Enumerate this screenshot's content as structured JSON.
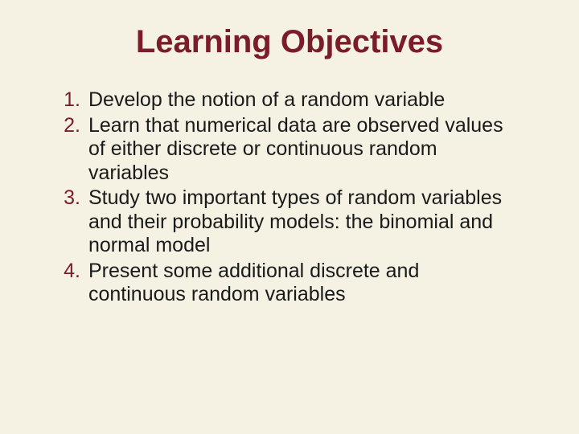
{
  "slide": {
    "title": "Learning Objectives",
    "items": [
      "Develop the notion of a random variable",
      "Learn that numerical data are observed values of either discrete or continuous random variables",
      "Study two important types of random variables and their probability models: the binomial and normal model",
      "Present some additional discrete and continuous random variables"
    ],
    "colors": {
      "background": "#f5f2e4",
      "title": "#7a1c2a",
      "number": "#7a1c2a",
      "body": "#1a1a1a"
    },
    "typography": {
      "title_fontsize": 40,
      "title_weight": "bold",
      "body_fontsize": 25,
      "font_family": "Arial"
    }
  }
}
